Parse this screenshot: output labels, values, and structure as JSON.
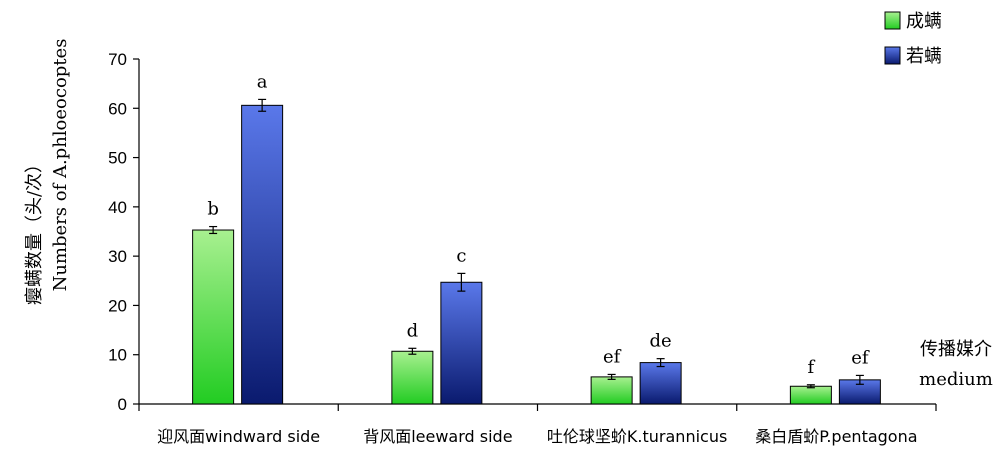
{
  "chart_data": {
    "type": "bar",
    "ylabel_cn": "瘿螨数量（头/次）",
    "ylabel_en": "Numbers of A.phloeocoptes",
    "xlabel_cn": "传播媒介",
    "xlabel_en": "medium",
    "ylim": [
      0,
      70
    ],
    "yticks": [
      0,
      10,
      20,
      30,
      40,
      50,
      60,
      70
    ],
    "categories": [
      "迎风面windward side",
      "背风面leeward side",
      "吐伦球坚蚧K.turannicus",
      "桑白盾蚧P.pentagona"
    ],
    "series": [
      {
        "name": "成螨",
        "color_top": "#a8f090",
        "color_bottom": "#22cc22",
        "values": [
          35.3,
          10.7,
          5.5,
          3.6
        ],
        "errors": [
          0.7,
          0.6,
          0.5,
          0.3
        ],
        "labels": [
          "b",
          "d",
          "ef",
          "f"
        ]
      },
      {
        "name": "若螨",
        "color_top": "#5a78ea",
        "color_bottom": "#0a1a6e",
        "values": [
          60.6,
          24.7,
          8.4,
          4.9
        ],
        "errors": [
          1.2,
          1.8,
          0.8,
          0.9
        ],
        "labels": [
          "a",
          "c",
          "de",
          "ef"
        ]
      }
    ],
    "legend_position": "top-right",
    "grid": false
  }
}
